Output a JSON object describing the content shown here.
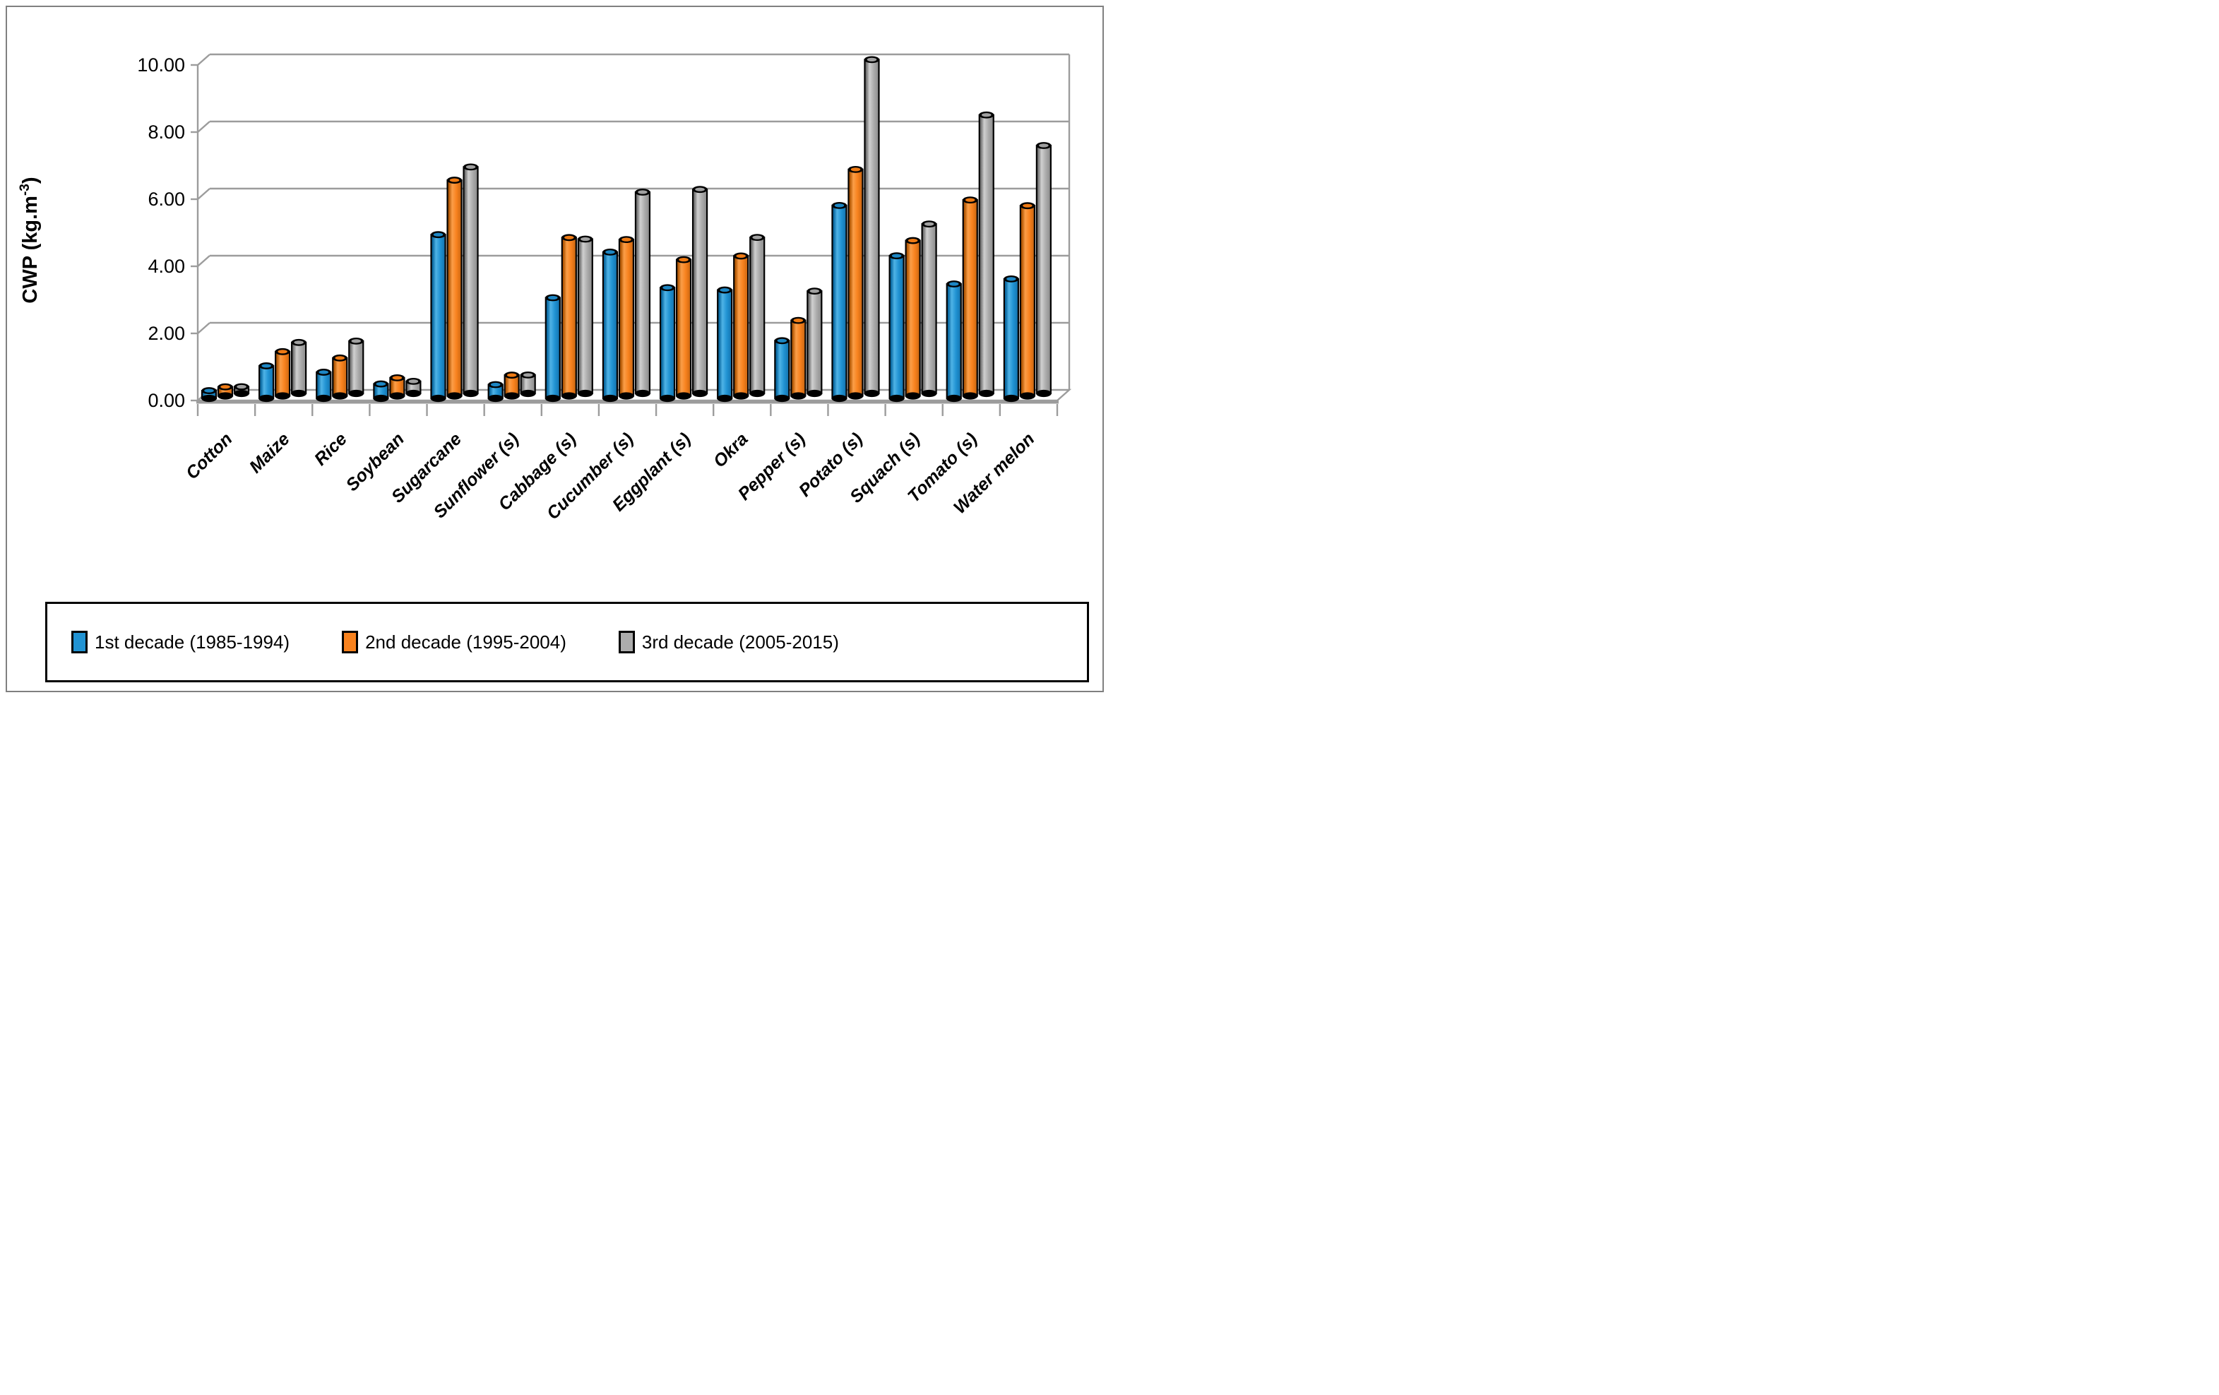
{
  "figure": {
    "background": "#ffffff",
    "frame_border_color": "#808080"
  },
  "chart_data": {
    "type": "bar",
    "subtype": "3d-cylinder-clustered",
    "title": "",
    "xlabel": "",
    "ylabel": "CWP (kg.m-3)",
    "ylabel_prefix": "CWP (kg.m",
    "ylabel_sup": "-3",
    "ylabel_suffix": ")",
    "ylim": [
      0,
      10
    ],
    "y_tick_step": 2,
    "y_tick_values": [
      0,
      2,
      4,
      6,
      8,
      10
    ],
    "y_tick_labels": [
      "0.00",
      "2.00",
      "4.00",
      "6.00",
      "8.00",
      "10.00"
    ],
    "grid": true,
    "legend_position": "bottom",
    "axis_color": "#9c9c9c",
    "bar_outline_color": "#000000",
    "categories": [
      "Cotton",
      "Maize",
      "Rice",
      "Soybean",
      "Sugarcane",
      "Sunflower (s)",
      "Cabbage (s)",
      "Cucumber (s)",
      "Eggplant (s)",
      "Okra",
      "Pepper (s)",
      "Potato (s)",
      "Squach (s)",
      "Tomato (s)",
      "Water melon"
    ],
    "series": [
      {
        "name": "1st decade (1985-1994)",
        "color": "#2193D3",
        "color_dark": "#0D6CA4",
        "color_light": "#4FB3E6",
        "color_shade": "#1271AC",
        "color_top": "#1D86C3",
        "values": [
          0.23,
          0.97,
          0.78,
          0.43,
          4.88,
          0.41,
          3.0,
          4.36,
          3.3,
          3.23,
          1.72,
          5.75,
          4.25,
          3.41,
          3.56
        ]
      },
      {
        "name": "2nd decade (1995-2004)",
        "color": "#F8821E",
        "color_dark": "#B55A06",
        "color_light": "#FB9E48",
        "color_shade": "#C66410",
        "color_top": "#EE7A14",
        "values": [
          0.27,
          1.32,
          1.13,
          0.54,
          6.43,
          0.62,
          4.72,
          4.66,
          4.06,
          4.17,
          2.25,
          6.75,
          4.63,
          5.84,
          5.67
        ]
      },
      {
        "name": "3rd decade (2005-2015)",
        "color": "#ACACAC",
        "color_dark": "#767676",
        "color_light": "#D0D0D0",
        "color_shade": "#8A8A8A",
        "color_top": "#A0A0A0",
        "values": [
          0.2,
          1.52,
          1.56,
          0.36,
          6.75,
          0.55,
          4.6,
          6.0,
          6.08,
          4.65,
          3.05,
          9.95,
          5.05,
          8.3,
          7.39
        ]
      }
    ]
  }
}
